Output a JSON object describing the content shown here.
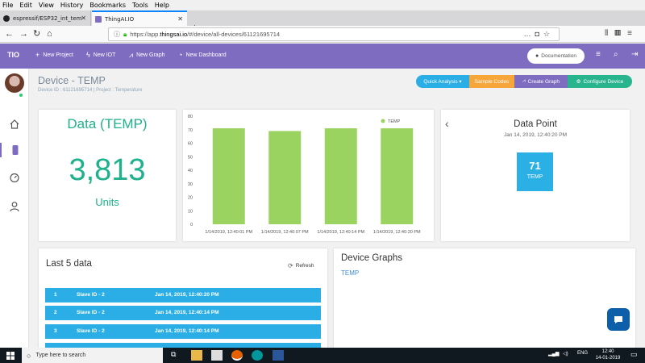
{
  "browser": {
    "menu": [
      "File",
      "Edit",
      "View",
      "History",
      "Bookmarks",
      "Tools",
      "Help"
    ],
    "tabs": [
      {
        "title": "espressif/ESP32_int_temp_sensor",
        "active": false
      },
      {
        "title": "ThingAI.IO",
        "active": true
      }
    ],
    "url_prefix": "https://app.",
    "url_domain": "thingsai.io",
    "url_rest": "/#/device/all-devices/61121695714"
  },
  "app": {
    "brand": "TIO",
    "nav": [
      "New Project",
      "New IOT",
      "New Graph",
      "New Dashboard"
    ],
    "documentation": "Documentation",
    "accent_color": "#7e6cc0"
  },
  "page": {
    "title": "Device - TEMP",
    "subtitle": "Device ID : 61121695714   |   Project : Temperature",
    "buttons": {
      "quick_analysis": "Quick Analysis ▾",
      "sample_codes": "Sample Codes",
      "create_graph": "Create Graph",
      "configure_device": "Configure Device"
    }
  },
  "summary": {
    "title": "Data (TEMP)",
    "value": "3,813",
    "unit": "Units"
  },
  "chart_data": {
    "type": "bar",
    "categories": [
      "1/14/2019, 12:40:01 PM",
      "1/14/2019, 12:40:07 PM",
      "1/14/2019, 12:40:14 PM",
      "1/14/2019, 12:40:20 PM"
    ],
    "series": [
      {
        "name": "TEMP",
        "values": [
          71,
          69,
          71,
          71
        ]
      }
    ],
    "ylim": [
      0,
      80
    ],
    "yticks": [
      "0",
      "10",
      "20",
      "30",
      "40",
      "50",
      "60",
      "70",
      "80"
    ],
    "color": "#9ad35f",
    "legend": "top-right",
    "grid": false
  },
  "data_point": {
    "title": "Data Point",
    "date": "Jan 14, 2019, 12:40:20 PM",
    "value": "71",
    "label": "TEMP"
  },
  "last_data": {
    "title": "Last 5 data",
    "refresh": "Refresh",
    "rows": [
      {
        "n": "1",
        "slave": "Slave ID - 2",
        "time": "Jan 14, 2019, 12:40:20 PM"
      },
      {
        "n": "2",
        "slave": "Slave ID - 2",
        "time": "Jan 14, 2019, 12:40:14 PM"
      },
      {
        "n": "3",
        "slave": "Slave ID - 2",
        "time": "Jan 14, 2019, 12:40:14 PM"
      }
    ]
  },
  "device_graphs": {
    "title": "Device Graphs",
    "link": "TEMP"
  },
  "taskbar": {
    "search_placeholder": "Type here to search",
    "language": "ENG",
    "time": "12:40",
    "date": "14-01-2019"
  }
}
